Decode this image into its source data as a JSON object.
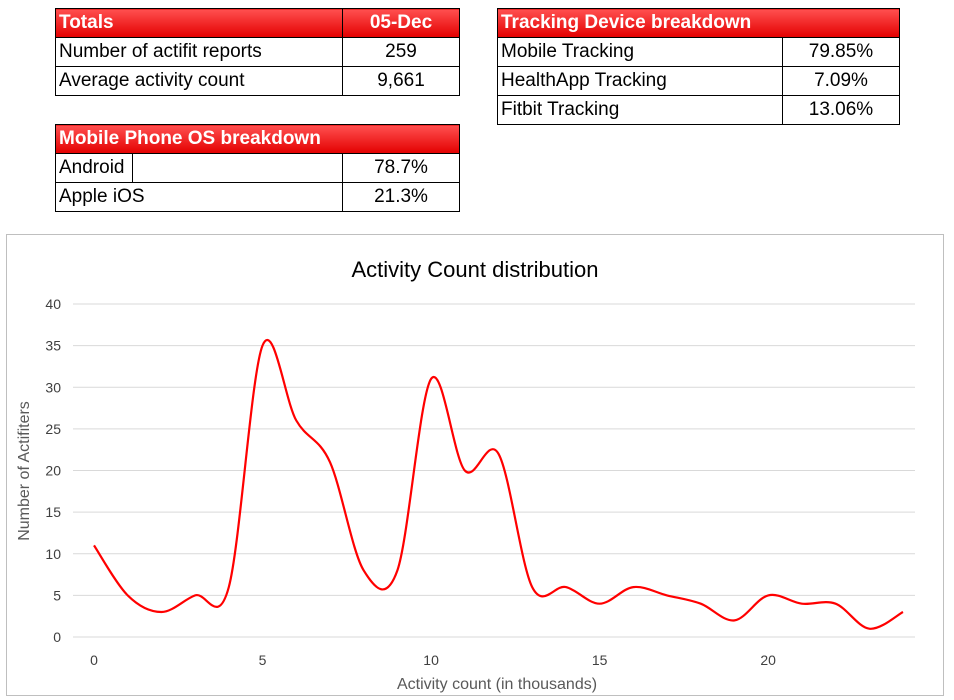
{
  "totals": {
    "header_label": "Totals",
    "header_date": "05-Dec",
    "rows": [
      {
        "label": "Number of actifit reports",
        "value": "259"
      },
      {
        "label": "Average activity count",
        "value": "9,661"
      }
    ]
  },
  "tracking": {
    "header_label": "Tracking Device breakdown",
    "rows": [
      {
        "label": "Mobile Tracking",
        "value": "79.85%"
      },
      {
        "label": "HealthApp Tracking",
        "value": "7.09%"
      },
      {
        "label": "Fitbit Tracking",
        "value": "13.06%"
      }
    ]
  },
  "os": {
    "header_label": "Mobile Phone OS breakdown",
    "rows": [
      {
        "label": "Android",
        "value": "78.7%"
      },
      {
        "label": "Apple iOS",
        "value": "21.3%"
      }
    ]
  },
  "colors": {
    "header_red": "#e30000",
    "line_red": "#ff0000",
    "grid": "#d9d9d9"
  },
  "chart_data": {
    "type": "line",
    "title": "Activity Count distribution",
    "xlabel": "Activity count (in thousands)",
    "ylabel": "Number of Actifiters",
    "xlim": [
      0,
      24
    ],
    "ylim": [
      0,
      40
    ],
    "xticks": [
      0,
      5,
      10,
      15,
      20
    ],
    "yticks": [
      0,
      5,
      10,
      15,
      20,
      25,
      30,
      35,
      40
    ],
    "grid": "horizontal",
    "smooth": true,
    "series": [
      {
        "x": [
          0,
          1,
          2,
          3,
          4,
          5,
          6,
          7,
          8,
          9,
          10,
          11,
          12,
          13,
          14,
          15,
          16,
          17,
          18,
          19,
          20,
          21,
          22,
          23,
          24
        ],
        "values": [
          11,
          5,
          3,
          5,
          6,
          35,
          26,
          21,
          8,
          8,
          31,
          20,
          22,
          6,
          6,
          4,
          6,
          5,
          4,
          2,
          5,
          4,
          4,
          1,
          3
        ]
      }
    ]
  }
}
